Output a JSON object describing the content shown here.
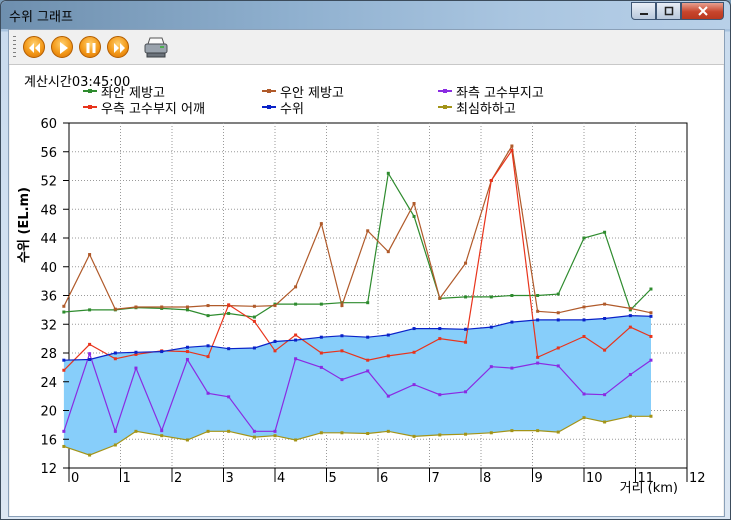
{
  "window": {
    "title": "수위 그래프"
  },
  "toolbar": {
    "buttons": [
      {
        "name": "rewind-button",
        "icon": "rewind-icon"
      },
      {
        "name": "play-button",
        "icon": "play-icon"
      },
      {
        "name": "pause-button",
        "icon": "pause-icon"
      },
      {
        "name": "fast-forward-button",
        "icon": "fast-forward-icon"
      }
    ],
    "print_icon": "printer-icon"
  },
  "header": {
    "calc_time": "계산시간03:45:00"
  },
  "legend": [
    {
      "label": "좌안 제방고",
      "color": "#2e8b2e"
    },
    {
      "label": "우안 제방고",
      "color": "#b05a2a"
    },
    {
      "label": "좌측 고수부지고",
      "color": "#8a2be2"
    },
    {
      "label": "우측 고수부지 어깨",
      "color": "#e8341c"
    },
    {
      "label": "수위",
      "color": "#0a22c8"
    },
    {
      "label": "최심하하고",
      "color": "#a39418"
    }
  ],
  "chart_data": {
    "type": "line",
    "ylabel": "수위 (EL.m)",
    "xlabel": "거리 (km)",
    "ylim": [
      12,
      60
    ],
    "xlim": [
      0,
      12
    ],
    "grid": true,
    "yticks": [
      12,
      16,
      20,
      24,
      28,
      32,
      36,
      40,
      44,
      48,
      52,
      56,
      60
    ],
    "xticks": [
      0,
      1,
      2,
      3,
      4,
      5,
      6,
      7,
      8,
      9,
      10,
      11,
      12
    ],
    "water_fill_color": "#87cefa",
    "series": [
      {
        "name": "좌안 제방고",
        "color": "#2e8b2e",
        "x": [
          -0.1,
          0.4,
          0.9,
          1.3,
          1.8,
          2.3,
          2.7,
          3.1,
          3.6,
          4.0,
          4.4,
          4.9,
          5.3,
          5.8,
          6.2,
          6.7,
          7.2,
          7.7,
          8.2,
          8.6,
          9.1,
          9.5,
          10.0,
          10.4,
          10.9,
          11.3
        ],
        "y": [
          33.7,
          34.0,
          34.0,
          34.3,
          34.2,
          34.0,
          33.2,
          33.5,
          33.0,
          34.8,
          34.8,
          34.8,
          35.0,
          35.0,
          53.0,
          47.0,
          35.6,
          35.8,
          35.8,
          36.0,
          36.0,
          36.2,
          44.0,
          44.8,
          34.0,
          36.9
        ]
      },
      {
        "name": "우안 제방고",
        "color": "#b05a2a",
        "x": [
          -0.1,
          0.4,
          0.9,
          1.3,
          1.8,
          2.3,
          2.7,
          3.1,
          3.6,
          4.0,
          4.4,
          4.9,
          5.3,
          5.8,
          6.2,
          6.7,
          7.2,
          7.7,
          8.2,
          8.6,
          9.1,
          9.5,
          10.0,
          10.4,
          10.9,
          11.3
        ],
        "y": [
          34.5,
          41.7,
          34.1,
          34.4,
          34.4,
          34.4,
          34.6,
          34.6,
          34.5,
          34.6,
          37.2,
          46.0,
          34.6,
          45.0,
          42.1,
          48.8,
          35.6,
          40.5,
          52.0,
          56.8,
          33.8,
          33.6,
          34.4,
          34.8,
          34.2,
          33.6
        ]
      },
      {
        "name": "좌측 고수부지고",
        "color": "#8a2be2",
        "x": [
          -0.1,
          0.4,
          0.9,
          1.3,
          1.8,
          2.3,
          2.7,
          3.1,
          3.6,
          4.0,
          4.4,
          4.9,
          5.3,
          5.8,
          6.2,
          6.7,
          7.2,
          7.7,
          8.2,
          8.6,
          9.1,
          9.5,
          10.0,
          10.4,
          10.9,
          11.3
        ],
        "y": [
          17.1,
          27.9,
          17.1,
          25.9,
          17.2,
          27.1,
          22.4,
          21.9,
          17.1,
          17.1,
          27.2,
          26.0,
          24.3,
          25.5,
          22.0,
          23.6,
          22.2,
          22.6,
          26.1,
          25.9,
          26.6,
          26.2,
          22.3,
          22.2,
          25.0,
          27.0
        ]
      },
      {
        "name": "우측 고수부지 어깨",
        "color": "#e8341c",
        "x": [
          -0.1,
          0.4,
          0.9,
          1.3,
          1.8,
          2.3,
          2.7,
          3.1,
          3.6,
          4.0,
          4.4,
          4.9,
          5.3,
          5.8,
          6.2,
          6.7,
          7.2,
          7.7,
          8.2,
          8.6,
          9.1,
          9.5,
          10.0,
          10.4,
          10.9,
          11.3
        ],
        "y": [
          25.6,
          29.2,
          27.2,
          27.8,
          28.3,
          28.2,
          27.5,
          34.7,
          32.4,
          28.3,
          30.5,
          28.0,
          28.3,
          27.0,
          27.6,
          28.1,
          30.0,
          29.5,
          52.0,
          56.2,
          27.4,
          28.7,
          30.3,
          28.4,
          31.6,
          30.3
        ]
      },
      {
        "name": "수위",
        "color": "#0a22c8",
        "x": [
          -0.1,
          0.4,
          0.9,
          1.3,
          1.8,
          2.3,
          2.7,
          3.1,
          3.6,
          4.0,
          4.4,
          4.9,
          5.3,
          5.8,
          6.2,
          6.7,
          7.2,
          7.7,
          8.2,
          8.6,
          9.1,
          9.5,
          10.0,
          10.4,
          10.9,
          11.3
        ],
        "y": [
          27.0,
          27.1,
          28.0,
          28.1,
          28.2,
          28.8,
          29.0,
          28.6,
          28.7,
          29.6,
          29.8,
          30.2,
          30.4,
          30.2,
          30.5,
          31.4,
          31.4,
          31.3,
          31.6,
          32.3,
          32.6,
          32.6,
          32.6,
          32.8,
          33.2,
          33.1
        ]
      },
      {
        "name": "최심하하고",
        "color": "#a39418",
        "x": [
          -0.1,
          0.4,
          0.9,
          1.3,
          1.8,
          2.3,
          2.7,
          3.1,
          3.6,
          4.0,
          4.4,
          4.9,
          5.3,
          5.8,
          6.2,
          6.7,
          7.2,
          7.7,
          8.2,
          8.6,
          9.1,
          9.5,
          10.0,
          10.4,
          10.9,
          11.3
        ],
        "y": [
          15.0,
          13.8,
          15.2,
          17.1,
          16.5,
          15.9,
          17.1,
          17.1,
          16.3,
          16.5,
          15.9,
          16.9,
          16.9,
          16.8,
          17.1,
          16.4,
          16.6,
          16.7,
          16.9,
          17.2,
          17.2,
          17.0,
          19.0,
          18.4,
          19.2,
          19.2
        ]
      }
    ]
  }
}
